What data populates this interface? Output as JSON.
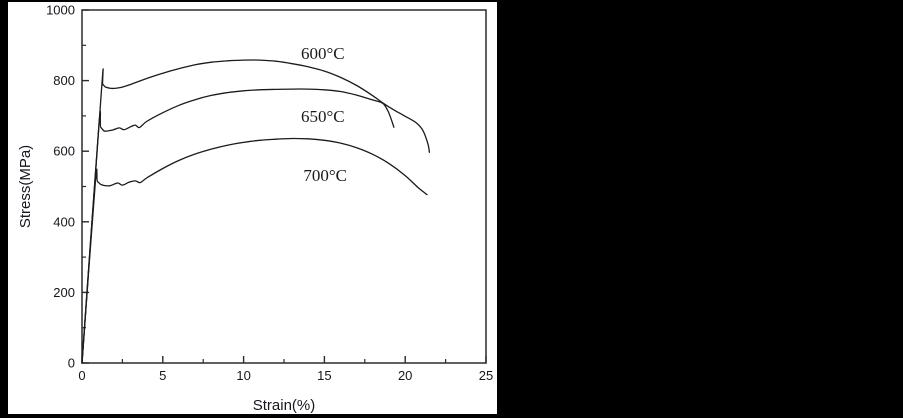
{
  "window": {
    "background": "#000000",
    "panel_background": "#ffffff"
  },
  "chart_data": {
    "type": "line",
    "title": "",
    "xlabel": "Strain(%)",
    "ylabel": "Stress(MPa)",
    "xlim": [
      0,
      25
    ],
    "ylim": [
      0,
      1000
    ],
    "xticks": [
      0,
      5,
      10,
      15,
      20,
      25
    ],
    "yticks": [
      0,
      200,
      400,
      600,
      800,
      1000
    ],
    "x_minor_step": 2.5,
    "y_minor_step": 100,
    "grid": false,
    "legend_position": "inline-curve-labels",
    "axis_color": "#2b2b2b",
    "line_color": "#1b1b1b",
    "tick_label_color": "#16161f",
    "series": [
      {
        "name": "600°C",
        "label": "600°C",
        "label_anchor": {
          "x": 14.9,
          "y": 878
        },
        "points": [
          [
            0,
            0
          ],
          [
            1.2,
            770
          ],
          [
            1.28,
            788
          ],
          [
            1.45,
            782
          ],
          [
            1.8,
            778
          ],
          [
            2.2,
            779
          ],
          [
            2.6,
            783
          ],
          [
            3,
            789
          ],
          [
            4,
            806
          ],
          [
            5,
            821
          ],
          [
            6,
            834
          ],
          [
            7,
            845
          ],
          [
            8,
            852
          ],
          [
            9,
            856
          ],
          [
            10,
            858
          ],
          [
            11,
            858
          ],
          [
            12,
            855
          ],
          [
            13,
            848
          ],
          [
            14,
            839
          ],
          [
            15,
            827
          ],
          [
            16,
            809
          ],
          [
            17,
            786
          ],
          [
            18,
            757
          ],
          [
            18.6,
            737
          ],
          [
            19.3,
            717
          ],
          [
            20,
            699
          ],
          [
            20.7,
            680
          ],
          [
            21.1,
            658
          ],
          [
            21.4,
            622
          ],
          [
            21.5,
            597
          ]
        ]
      },
      {
        "name": "650°C",
        "label": "650°C",
        "label_anchor": {
          "x": 14.9,
          "y": 700
        },
        "points": [
          [
            0,
            0
          ],
          [
            1.03,
            662
          ],
          [
            1.15,
            668
          ],
          [
            1.4,
            657
          ],
          [
            1.9,
            660
          ],
          [
            2.3,
            666
          ],
          [
            2.6,
            661
          ],
          [
            3,
            669
          ],
          [
            3.3,
            674
          ],
          [
            3.55,
            667
          ],
          [
            4,
            684
          ],
          [
            5,
            709
          ],
          [
            6,
            730
          ],
          [
            7,
            746
          ],
          [
            8,
            758
          ],
          [
            9,
            766
          ],
          [
            10,
            771
          ],
          [
            11,
            774
          ],
          [
            12,
            775
          ],
          [
            13,
            776
          ],
          [
            14,
            776
          ],
          [
            15,
            774
          ],
          [
            16,
            769
          ],
          [
            17,
            759
          ],
          [
            18,
            745
          ],
          [
            18.6,
            736
          ],
          [
            18.9,
            717
          ],
          [
            19.1,
            695
          ],
          [
            19.3,
            668
          ]
        ]
      },
      {
        "name": "700°C",
        "label": "700°C",
        "label_anchor": {
          "x": 15.05,
          "y": 533
        },
        "points": [
          [
            0,
            0
          ],
          [
            0.82,
            510
          ],
          [
            0.95,
            514
          ],
          [
            1.2,
            505
          ],
          [
            1.7,
            502
          ],
          [
            2.2,
            510
          ],
          [
            2.5,
            504
          ],
          [
            2.9,
            512
          ],
          [
            3.3,
            516
          ],
          [
            3.6,
            511
          ],
          [
            4,
            524
          ],
          [
            5,
            551
          ],
          [
            6,
            574
          ],
          [
            7,
            592
          ],
          [
            8,
            606
          ],
          [
            9,
            617
          ],
          [
            10,
            625
          ],
          [
            11,
            631
          ],
          [
            12,
            634
          ],
          [
            13,
            636
          ],
          [
            14,
            635
          ],
          [
            15,
            631
          ],
          [
            16,
            623
          ],
          [
            17,
            610
          ],
          [
            18,
            591
          ],
          [
            19,
            565
          ],
          [
            20,
            531
          ],
          [
            20.8,
            497
          ],
          [
            21.35,
            477
          ]
        ]
      }
    ]
  }
}
